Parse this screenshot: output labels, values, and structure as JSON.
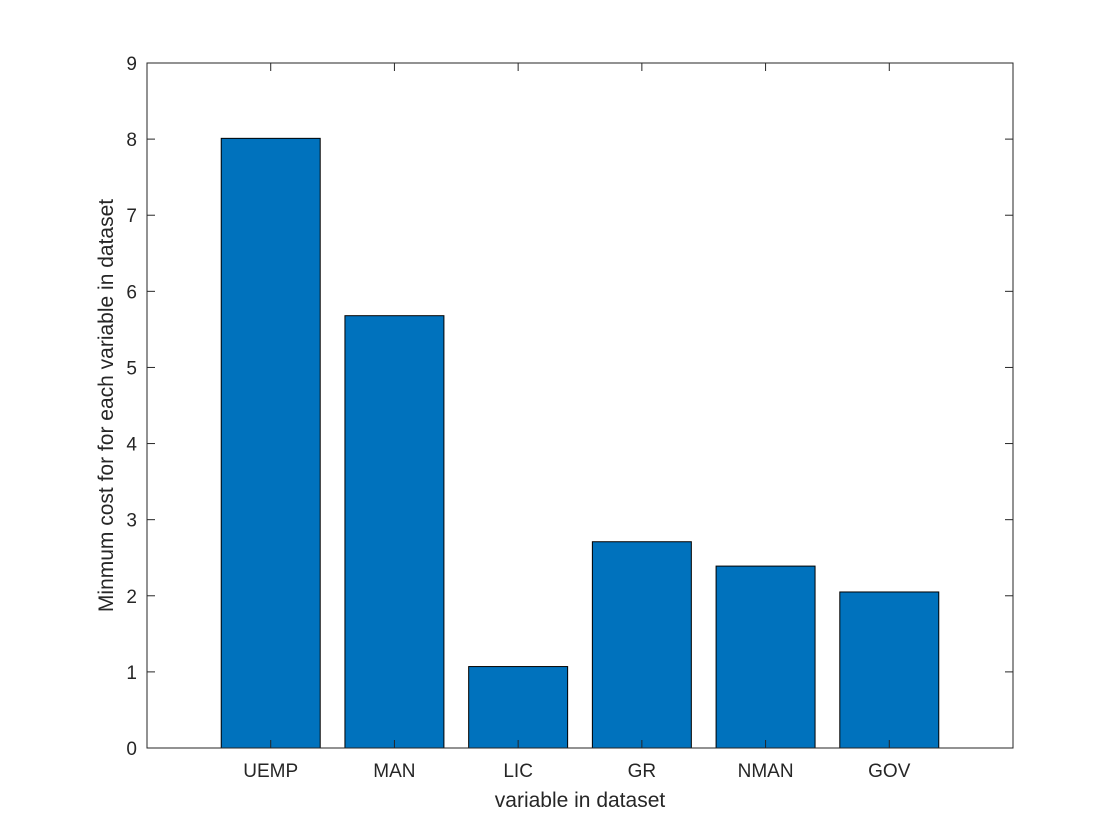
{
  "chart_data": {
    "type": "bar",
    "categories": [
      "UEMP",
      "MAN",
      "LIC",
      "GR",
      "NMAN",
      "GOV"
    ],
    "values": [
      8.01,
      5.68,
      1.07,
      2.71,
      2.39,
      2.05
    ],
    "xlabel": "variable in dataset",
    "ylabel": "Minmum cost for for each variable in dataset",
    "ylim": [
      0,
      9
    ],
    "yticks": [
      0,
      1,
      2,
      3,
      4,
      5,
      6,
      7,
      8,
      9
    ],
    "xlim": [
      0,
      7
    ],
    "grid": false,
    "colors": {
      "bar_fill": "#0072BD",
      "bar_edge": "#000000",
      "axis": "#262626"
    }
  }
}
